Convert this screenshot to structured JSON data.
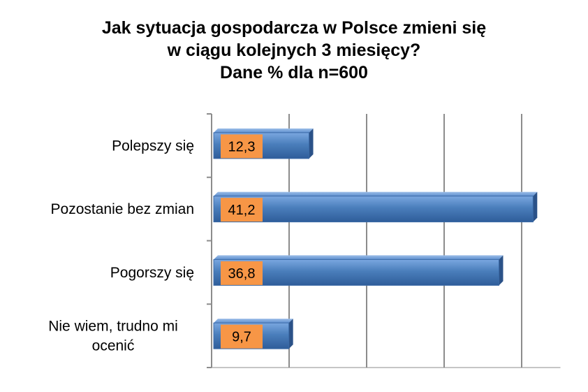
{
  "chart_data": {
    "type": "bar",
    "orientation": "horizontal",
    "title_lines": [
      "Jak sytuacja gospodarcza w Polsce zmieni się",
      "w ciągu kolejnych 3 miesięcy?",
      "Dane % dla n=600"
    ],
    "categories": [
      "Polepszy się",
      "Pozostanie bez zmian",
      "Pogorszy się",
      "Nie wiem, trudno mi ocenić"
    ],
    "category_label_lines": [
      [
        "Polepszy się"
      ],
      [
        "Pozostanie bez zmian"
      ],
      [
        "Pogorszy się"
      ],
      [
        "Nie wiem, trudno mi",
        "ocenić"
      ]
    ],
    "values": [
      12.3,
      41.2,
      36.8,
      9.7
    ],
    "value_labels": [
      "12,3",
      "41,2",
      "36,8",
      "9,7"
    ],
    "xlim": [
      0,
      41.2
    ],
    "grid": true,
    "legend": "none",
    "colors": {
      "bar": "#4a7ebb",
      "bar_light": "#6f9fdb",
      "bar_dark": "#2d5a94",
      "label_box": "#f79646",
      "grid": "#8c8c8c",
      "axis": "#8c8c8c"
    }
  }
}
